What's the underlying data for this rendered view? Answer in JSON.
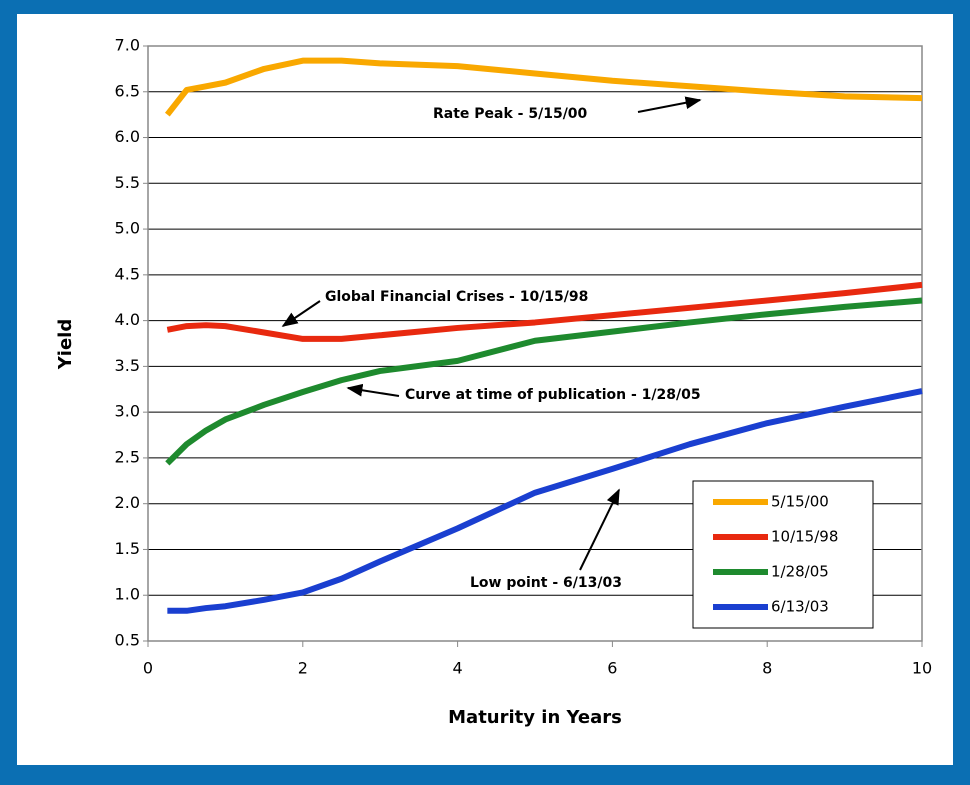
{
  "chart_data": {
    "type": "line",
    "x_label": "Maturity in Years",
    "y_label": "Yield",
    "x": [
      0.25,
      0.5,
      0.75,
      1,
      1.5,
      2,
      2.5,
      3,
      4,
      5,
      6,
      7,
      8,
      9,
      10
    ],
    "series": [
      {
        "name": "5/15/00",
        "color": "#f9a800",
        "values": [
          6.25,
          6.52,
          6.56,
          6.6,
          6.75,
          6.84,
          6.84,
          6.81,
          6.78,
          6.7,
          6.62,
          6.56,
          6.5,
          6.45,
          6.43
        ]
      },
      {
        "name": "10/15/98",
        "color": "#e8290f",
        "values": [
          3.9,
          3.94,
          3.95,
          3.94,
          3.87,
          3.8,
          3.8,
          3.84,
          3.92,
          3.98,
          4.06,
          4.14,
          4.22,
          4.3,
          4.39
        ]
      },
      {
        "name": "1/28/05",
        "color": "#1e8a2e",
        "values": [
          2.44,
          2.65,
          2.8,
          2.92,
          3.08,
          3.22,
          3.35,
          3.45,
          3.56,
          3.78,
          3.88,
          3.98,
          4.07,
          4.15,
          4.22
        ]
      },
      {
        "name": "6/13/03",
        "color": "#1a3fd0",
        "values": [
          0.83,
          0.83,
          0.86,
          0.88,
          0.95,
          1.03,
          1.18,
          1.37,
          1.73,
          2.12,
          2.38,
          2.65,
          2.88,
          3.06,
          3.23
        ]
      }
    ],
    "xlim": [
      0,
      10
    ],
    "xticks": [
      0,
      2,
      4,
      6,
      8,
      10
    ],
    "ylim": [
      0.5,
      7
    ],
    "yticks": [
      0.5,
      {
        "value": 1,
        "label": "1.0"
      },
      1.5,
      {
        "value": 2,
        "label": "2.0"
      },
      2.5,
      {
        "value": 3,
        "label": "3.0"
      },
      3.5,
      {
        "value": 4,
        "label": "4.0"
      },
      4.5,
      {
        "value": 5,
        "label": "5.0"
      },
      5.5,
      {
        "value": 6,
        "label": "6.0"
      },
      6.5,
      {
        "value": 7,
        "label": "7.0"
      }
    ],
    "grid": true,
    "legend_position": "lower right",
    "annotations": [
      "Rate Peak - 5/15/00",
      "Global Financial Crises - 10/15/98",
      "Curve at time of publication - 1/28/05",
      "Low point - 6/13/03"
    ]
  }
}
